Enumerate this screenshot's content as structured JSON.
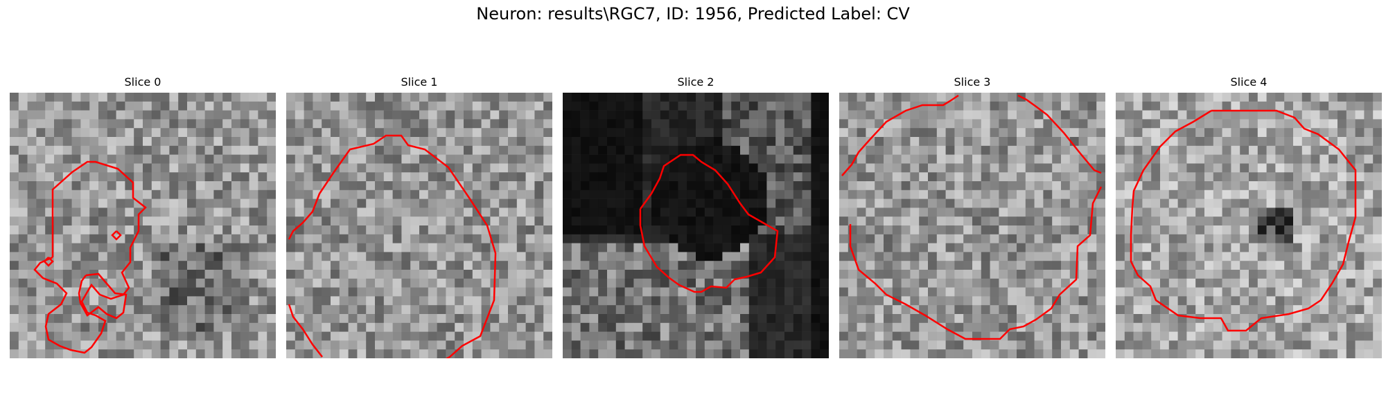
{
  "figure": {
    "title": "Neuron: results\\RGC7, ID: 1956, Predicted Label: CV"
  },
  "panels": [
    {
      "title": "Slice 0"
    },
    {
      "title": "Slice 1"
    },
    {
      "title": "Slice 2"
    },
    {
      "title": "Slice 3"
    },
    {
      "title": "Slice 4"
    }
  ],
  "colors": {
    "contour": "#ff0000",
    "background": "#ffffff"
  }
}
